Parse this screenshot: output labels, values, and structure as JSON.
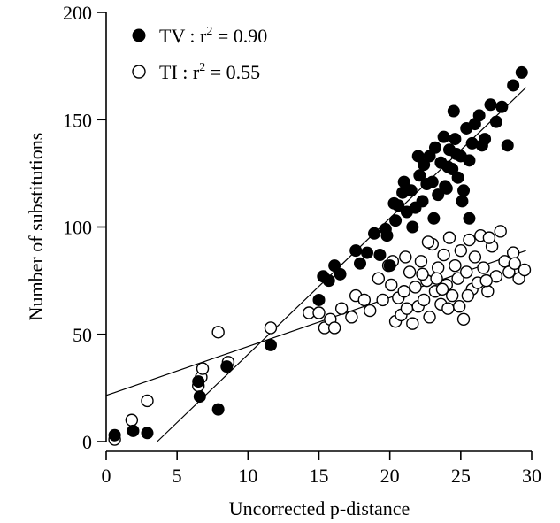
{
  "chart_data": {
    "type": "scatter",
    "title": "",
    "xlabel": "Uncorrected p-distance",
    "ylabel": "Number of substitutions",
    "xlim": [
      0,
      30
    ],
    "ylim": [
      0,
      200
    ],
    "xticks": [
      0,
      5,
      10,
      15,
      20,
      25,
      30
    ],
    "yticks": [
      0,
      50,
      100,
      150,
      200
    ],
    "xtick_labels": [
      "0",
      "5",
      "10",
      "15",
      "20",
      "25",
      "30"
    ],
    "ytick_labels": [
      "0",
      "50",
      "100",
      "150",
      "200"
    ],
    "grid": false,
    "legend_position": "top-left",
    "series": [
      {
        "name": "TV : r² = 0.90",
        "label_main": "TV : r",
        "label_sup": "2",
        "label_rest": " = 0.90",
        "marker": "filled-circle",
        "color": "#000000",
        "fit": {
          "x": [
            3.6,
            29.6
          ],
          "y": [
            0,
            165
          ]
        },
        "points": [
          [
            0.6,
            3
          ],
          [
            1.9,
            5
          ],
          [
            2.9,
            4
          ],
          [
            6.5,
            28
          ],
          [
            6.6,
            21
          ],
          [
            7.9,
            15
          ],
          [
            8.5,
            35
          ],
          [
            11.6,
            45
          ],
          [
            15.0,
            66
          ],
          [
            15.3,
            77
          ],
          [
            15.7,
            75
          ],
          [
            16.1,
            82
          ],
          [
            16.5,
            78
          ],
          [
            17.6,
            89
          ],
          [
            17.9,
            83
          ],
          [
            18.4,
            88
          ],
          [
            18.9,
            97
          ],
          [
            19.3,
            87
          ],
          [
            19.7,
            99
          ],
          [
            20.0,
            82
          ],
          [
            20.3,
            111
          ],
          [
            20.6,
            110
          ],
          [
            20.9,
            116
          ],
          [
            21.2,
            107
          ],
          [
            21.5,
            117
          ],
          [
            21.8,
            109
          ],
          [
            22.1,
            124
          ],
          [
            22.3,
            112
          ],
          [
            22.6,
            120
          ],
          [
            22.8,
            133
          ],
          [
            23.0,
            121
          ],
          [
            23.2,
            137
          ],
          [
            23.4,
            115
          ],
          [
            23.6,
            130
          ],
          [
            23.8,
            142
          ],
          [
            24.0,
            118
          ],
          [
            24.2,
            136
          ],
          [
            24.4,
            127
          ],
          [
            24.6,
            141
          ],
          [
            24.8,
            123
          ],
          [
            25.0,
            133
          ],
          [
            25.2,
            117
          ],
          [
            25.4,
            146
          ],
          [
            25.6,
            131
          ],
          [
            25.8,
            139
          ],
          [
            26.0,
            148
          ],
          [
            26.3,
            152
          ],
          [
            26.7,
            141
          ],
          [
            27.1,
            157
          ],
          [
            27.5,
            149
          ],
          [
            27.9,
            156
          ],
          [
            28.3,
            138
          ],
          [
            28.7,
            166
          ],
          [
            29.3,
            172
          ],
          [
            21.0,
            121
          ],
          [
            22.4,
            129
          ],
          [
            23.1,
            104
          ],
          [
            24.1,
            128
          ],
          [
            24.7,
            134
          ],
          [
            25.1,
            112
          ],
          [
            22.0,
            133
          ],
          [
            23.9,
            119
          ],
          [
            21.6,
            100
          ],
          [
            24.5,
            154
          ],
          [
            26.5,
            138
          ],
          [
            19.8,
            96
          ],
          [
            20.4,
            103
          ],
          [
            25.6,
            104
          ]
        ]
      },
      {
        "name": "TI : r² = 0.55",
        "label_main": "TI : r",
        "label_sup": "2",
        "label_rest": " = 0.55",
        "marker": "open-circle",
        "color": "#000000",
        "fit": {
          "x": [
            0,
            29.6
          ],
          "y": [
            21.5,
            89
          ]
        },
        "points": [
          [
            0.6,
            1
          ],
          [
            1.8,
            10
          ],
          [
            2.9,
            19
          ],
          [
            6.5,
            26
          ],
          [
            6.7,
            30
          ],
          [
            6.8,
            34
          ],
          [
            7.9,
            51
          ],
          [
            8.6,
            37
          ],
          [
            11.6,
            53
          ],
          [
            14.3,
            60
          ],
          [
            15.0,
            60
          ],
          [
            15.4,
            53
          ],
          [
            15.8,
            57
          ],
          [
            16.1,
            53
          ],
          [
            16.6,
            62
          ],
          [
            17.3,
            58
          ],
          [
            17.6,
            68
          ],
          [
            18.2,
            66
          ],
          [
            18.6,
            61
          ],
          [
            19.2,
            76
          ],
          [
            19.5,
            66
          ],
          [
            19.9,
            82
          ],
          [
            20.1,
            73
          ],
          [
            20.4,
            56
          ],
          [
            20.6,
            67
          ],
          [
            20.8,
            59
          ],
          [
            21.0,
            70
          ],
          [
            21.2,
            62
          ],
          [
            21.4,
            79
          ],
          [
            21.6,
            55
          ],
          [
            21.8,
            72
          ],
          [
            22.0,
            63
          ],
          [
            22.2,
            84
          ],
          [
            22.4,
            66
          ],
          [
            22.6,
            75
          ],
          [
            22.8,
            58
          ],
          [
            23.0,
            92
          ],
          [
            23.2,
            70
          ],
          [
            23.4,
            81
          ],
          [
            23.6,
            64
          ],
          [
            23.8,
            87
          ],
          [
            24.0,
            73
          ],
          [
            24.2,
            95
          ],
          [
            24.4,
            68
          ],
          [
            24.6,
            82
          ],
          [
            24.8,
            76
          ],
          [
            25.0,
            89
          ],
          [
            25.2,
            57
          ],
          [
            25.4,
            79
          ],
          [
            25.6,
            94
          ],
          [
            25.8,
            71
          ],
          [
            26.0,
            86
          ],
          [
            26.2,
            74
          ],
          [
            26.4,
            96
          ],
          [
            26.6,
            81
          ],
          [
            26.9,
            70
          ],
          [
            27.2,
            91
          ],
          [
            27.5,
            77
          ],
          [
            27.8,
            98
          ],
          [
            28.1,
            84
          ],
          [
            28.4,
            79
          ],
          [
            28.7,
            88
          ],
          [
            29.1,
            76
          ],
          [
            29.5,
            80
          ],
          [
            21.1,
            86
          ],
          [
            22.7,
            93
          ],
          [
            24.1,
            62
          ],
          [
            25.5,
            68
          ],
          [
            27.0,
            95
          ],
          [
            23.3,
            76
          ],
          [
            20.2,
            84
          ],
          [
            26.8,
            75
          ],
          [
            24.9,
            63
          ],
          [
            23.7,
            71
          ],
          [
            22.3,
            78
          ],
          [
            28.8,
            83
          ]
        ]
      }
    ]
  }
}
